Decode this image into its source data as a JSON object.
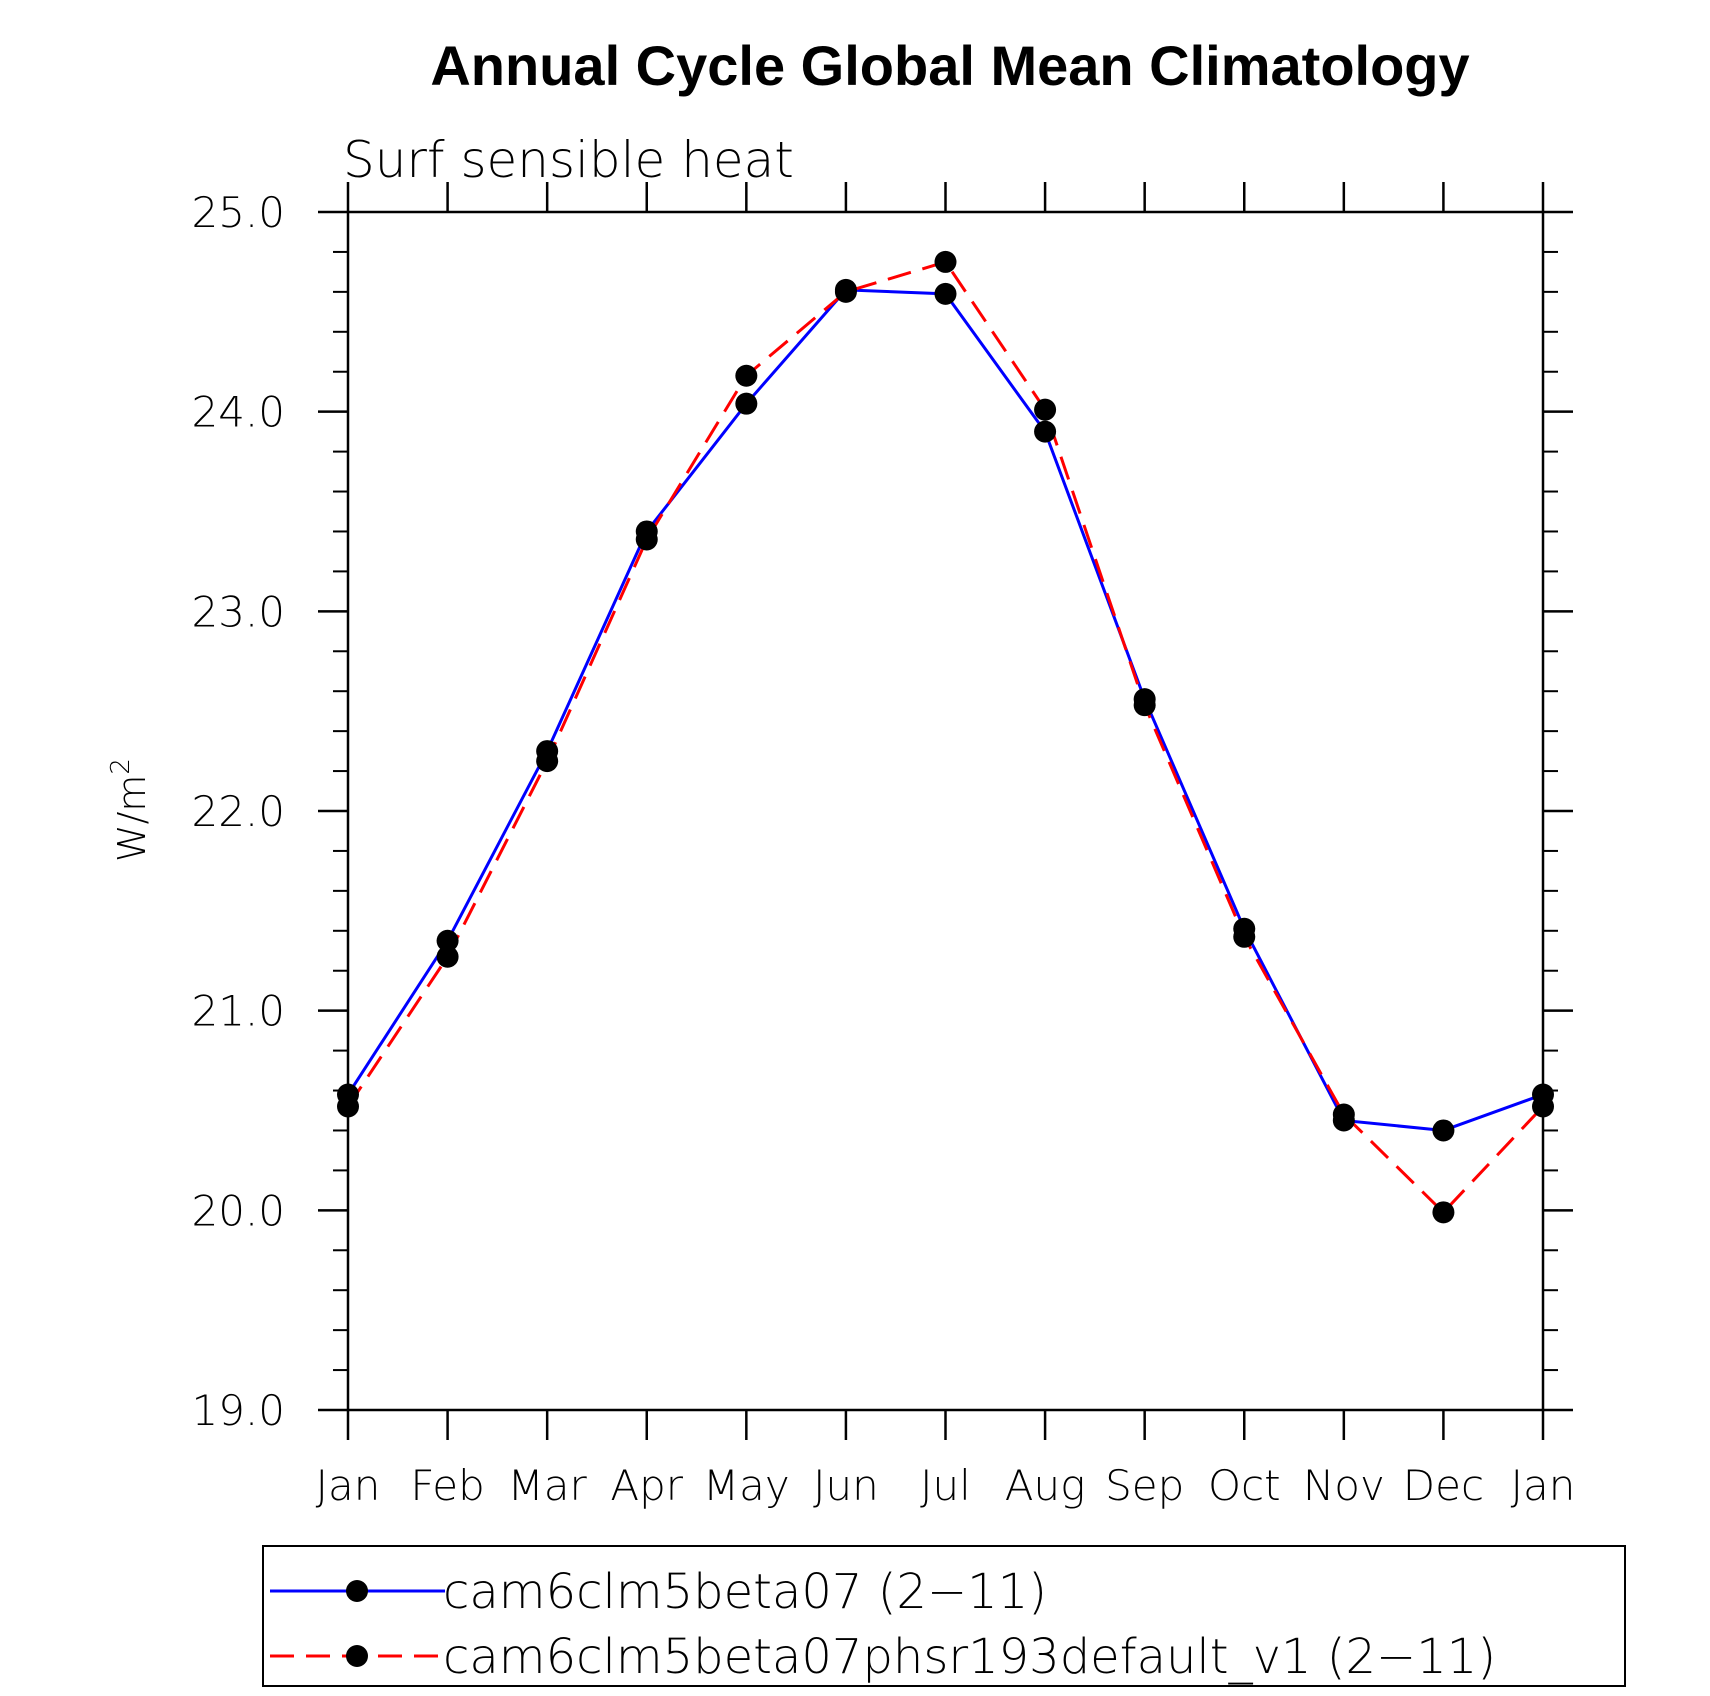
{
  "chart_data": {
    "type": "line",
    "title": "Annual Cycle Global Mean Climatology",
    "subtitle": "Surf sensible heat",
    "ylabel": "W/m",
    "ylabel_superscript": "2",
    "xlabel": "",
    "ylim": [
      19.0,
      25.0
    ],
    "y_ticks": [
      "19.0",
      "20.0",
      "21.0",
      "22.0",
      "23.0",
      "24.0",
      "25.0"
    ],
    "y_minor_step": 0.2,
    "categories": [
      "Jan",
      "Feb",
      "Mar",
      "Apr",
      "May",
      "Jun",
      "Jul",
      "Aug",
      "Sep",
      "Oct",
      "Nov",
      "Dec",
      "Jan"
    ],
    "grid": false,
    "legend_position": "bottom",
    "series": [
      {
        "name": "cam6clm5beta07 (2−11)",
        "color": "#0000ff",
        "line_style": "solid",
        "marker": "filled-circle",
        "values": [
          20.58,
          21.35,
          22.3,
          23.4,
          24.04,
          24.61,
          24.59,
          23.9,
          22.56,
          21.41,
          20.45,
          20.4,
          20.58
        ]
      },
      {
        "name": "cam6clm5beta07phsr193default_v1 (2−11)",
        "color": "#ff0000",
        "line_style": "dashed",
        "marker": "filled-circle",
        "values": [
          20.52,
          21.27,
          22.25,
          23.36,
          24.18,
          24.6,
          24.75,
          24.01,
          22.53,
          21.37,
          20.48,
          19.99,
          20.52
        ]
      }
    ]
  }
}
